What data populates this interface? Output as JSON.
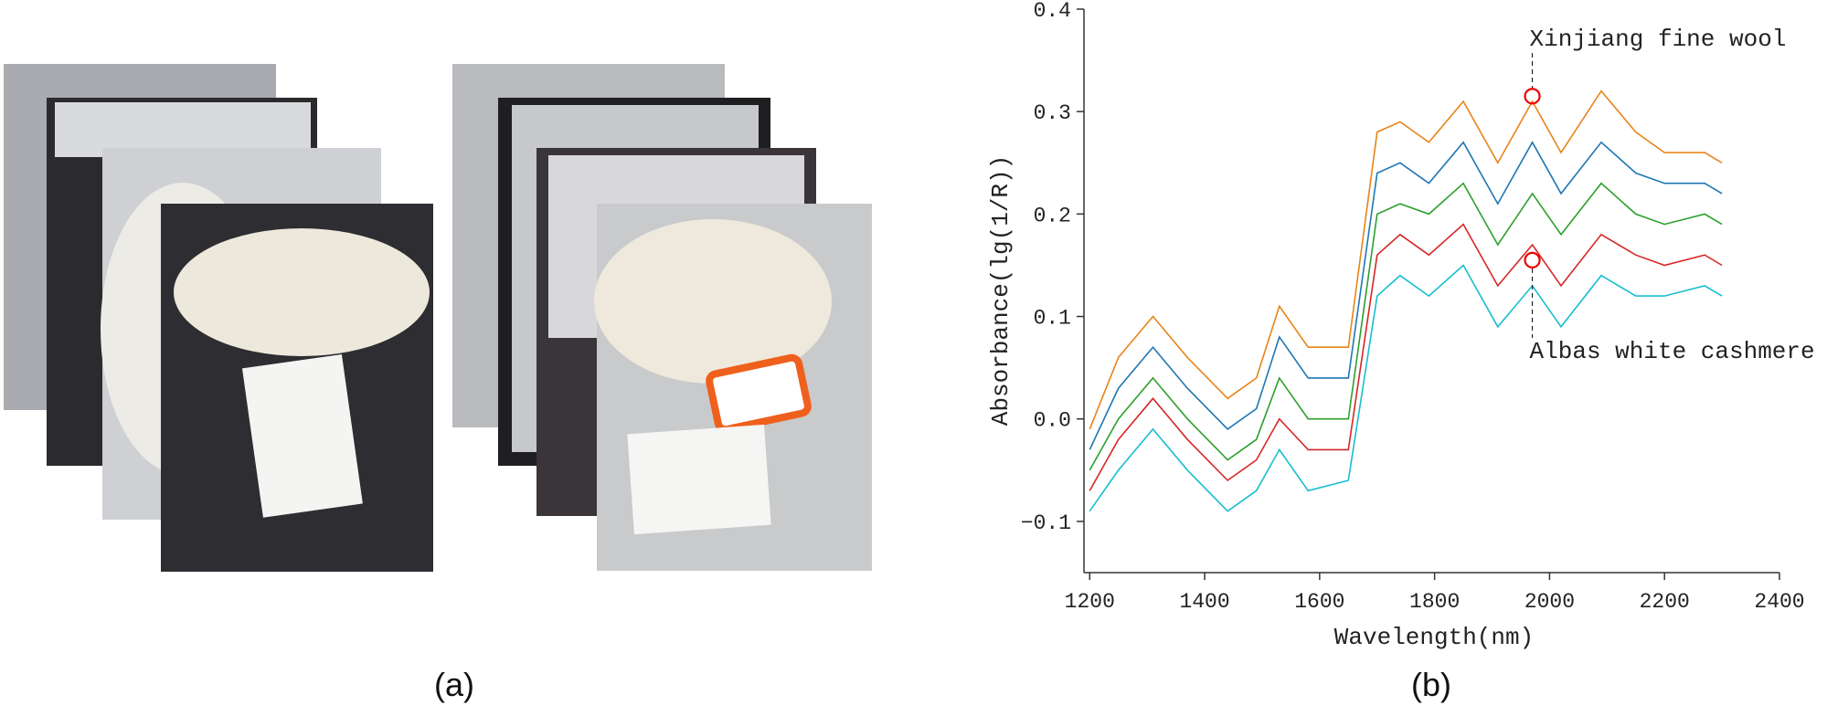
{
  "panel_labels": [
    "(a)",
    "(b)"
  ],
  "chart_data": {
    "type": "line",
    "x_label": "Wavelength(nm)",
    "y_label": "Absorbance(lg(1/R))",
    "x": [
      1200,
      1250,
      1310,
      1370,
      1440,
      1490,
      1530,
      1580,
      1650,
      1700,
      1740,
      1790,
      1850,
      1910,
      1970,
      2020,
      2090,
      2150,
      2200,
      2270,
      2300
    ],
    "series": [
      {
        "color": "#17becf",
        "values": [
          -0.09,
          -0.05,
          -0.01,
          -0.05,
          -0.09,
          -0.07,
          -0.03,
          -0.07,
          -0.06,
          0.12,
          0.14,
          0.12,
          0.15,
          0.09,
          0.13,
          0.09,
          0.14,
          0.12,
          0.12,
          0.13,
          0.12
        ]
      },
      {
        "color": "#d62728",
        "values": [
          -0.07,
          -0.02,
          0.02,
          -0.02,
          -0.06,
          -0.04,
          0.0,
          -0.03,
          -0.03,
          0.16,
          0.18,
          0.16,
          0.19,
          0.13,
          0.17,
          0.13,
          0.18,
          0.16,
          0.15,
          0.16,
          0.15
        ]
      },
      {
        "color": "#2ca02c",
        "values": [
          -0.05,
          0.0,
          0.04,
          0.0,
          -0.04,
          -0.02,
          0.04,
          0.0,
          0.0,
          0.2,
          0.21,
          0.2,
          0.23,
          0.17,
          0.22,
          0.18,
          0.23,
          0.2,
          0.19,
          0.2,
          0.19
        ]
      },
      {
        "color": "#1f77b4",
        "values": [
          -0.03,
          0.03,
          0.07,
          0.03,
          -0.01,
          0.01,
          0.08,
          0.04,
          0.04,
          0.24,
          0.25,
          0.23,
          0.27,
          0.21,
          0.27,
          0.22,
          0.27,
          0.24,
          0.23,
          0.23,
          0.22
        ]
      },
      {
        "color": "#e8841a",
        "values": [
          -0.01,
          0.06,
          0.1,
          0.06,
          0.02,
          0.04,
          0.11,
          0.07,
          0.07,
          0.28,
          0.29,
          0.27,
          0.31,
          0.25,
          0.31,
          0.26,
          0.32,
          0.28,
          0.26,
          0.26,
          0.25
        ]
      }
    ],
    "annotations": [
      {
        "text": "Xinjiang fine wool",
        "x": 1970,
        "y": 0.315
      },
      {
        "text": "Albas white cashmere",
        "x": 1970,
        "y": 0.155
      }
    ],
    "xlim": [
      1190,
      2400
    ],
    "ylim": [
      -0.15,
      0.4
    ],
    "xticks": [
      1200,
      1400,
      1600,
      1800,
      2000,
      2200,
      2400
    ],
    "yticks": [
      {
        "value": -0.1,
        "label": "−0.1"
      },
      {
        "value": 0,
        "label": "0.0"
      },
      0.1,
      0.2,
      0.3,
      0.4
    ]
  }
}
